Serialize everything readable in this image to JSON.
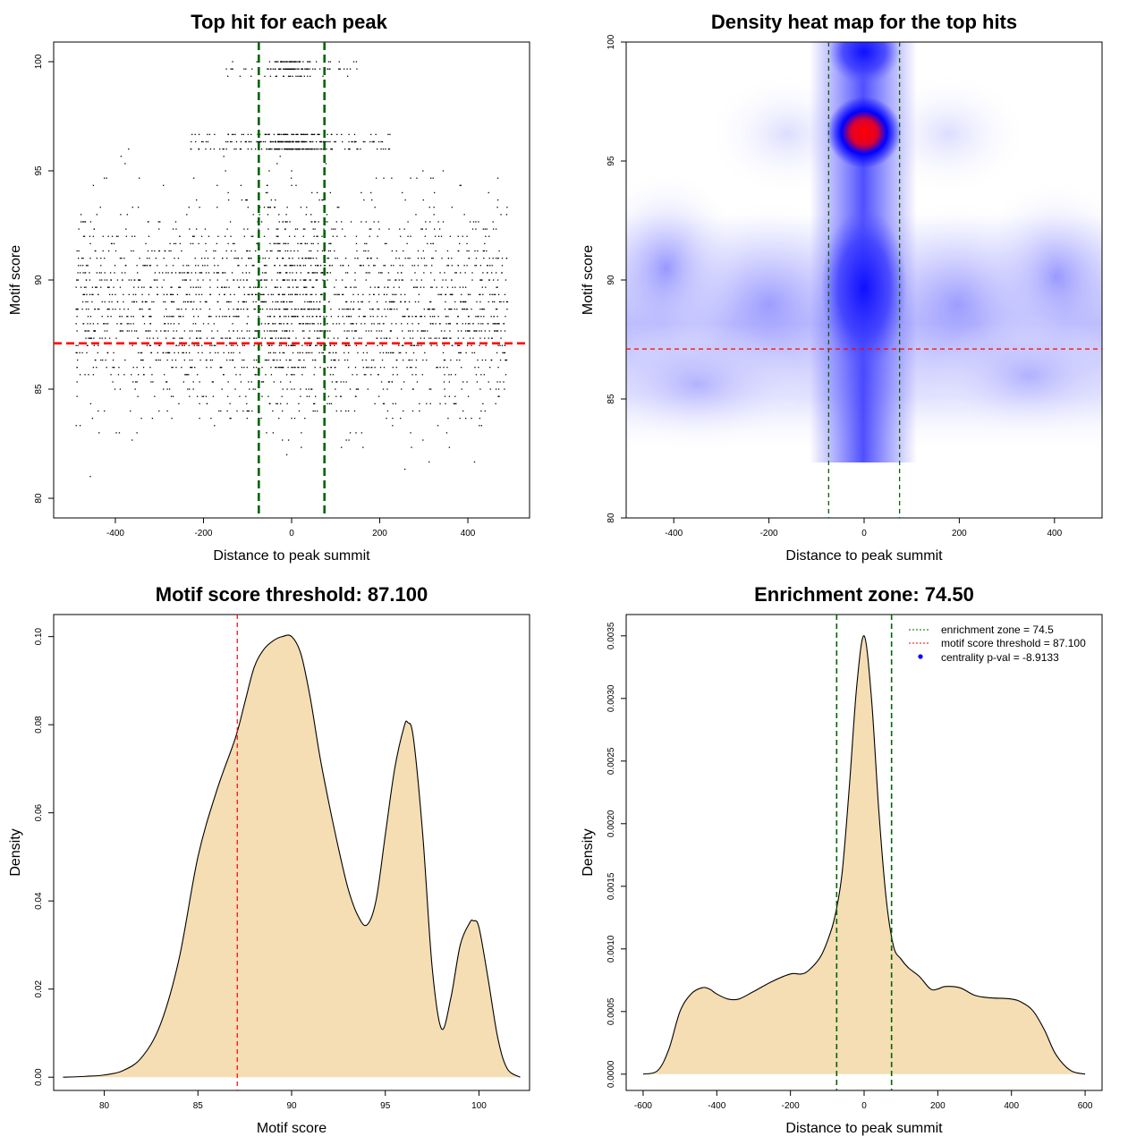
{
  "chart_data": [
    {
      "type": "scatter",
      "title": "Top hit for each peak",
      "xlabel": "Distance to peak summit",
      "ylabel": "Motif score",
      "xlim": [
        -540,
        540
      ],
      "ylim": [
        79.1,
        100.9
      ],
      "xticks": [
        -400,
        -200,
        0,
        200,
        400
      ],
      "yticks": [
        80,
        85,
        90,
        95,
        100
      ],
      "vlines": [
        -74.5,
        74.5
      ],
      "hline": 87.1,
      "vline_color": "#006400",
      "hline_color": "#ff0000",
      "point_color": "#000000",
      "n_points_approx": 3000,
      "note_points": "dense point cloud: x roughly uniform in [-500,500], y mostly 83-93 with dense bands near 96-96.7 and 99.4-100 concentrated around x=0"
    },
    {
      "type": "heatmap",
      "title": "Density heat map for the top hits",
      "xlabel": "Distance to peak summit",
      "ylabel": "Motif score",
      "xlim": [
        -500,
        500
      ],
      "ylim": [
        80,
        100
      ],
      "xticks": [
        -400,
        -200,
        0,
        200,
        400
      ],
      "yticks": [
        80,
        85,
        90,
        95,
        100
      ],
      "vlines": [
        -74.5,
        74.5
      ],
      "hline": 87.1,
      "vline_color": "#006400",
      "hline_color": "#ff0000",
      "hotspots": [
        {
          "x": 0,
          "y": 96.2,
          "intensity": 1.0
        },
        {
          "x": 0,
          "y": 99.6,
          "intensity": 0.7
        },
        {
          "x": 0,
          "y": 90.0,
          "intensity": 0.6
        }
      ],
      "low_color": "#ffffff",
      "mid_color": "#0000ff",
      "high_color": "#ff0000"
    },
    {
      "type": "area",
      "title": "Motif score threshold: 87.100",
      "xlabel": "Motif score",
      "ylabel": "Density",
      "xlim": [
        77.3,
        102.7
      ],
      "ylim": [
        -0.003,
        0.105
      ],
      "xticks": [
        80,
        85,
        90,
        95,
        100
      ],
      "yticks": [
        0.0,
        0.02,
        0.04,
        0.06,
        0.08,
        0.1
      ],
      "ytick_labels": [
        "0.00",
        "0.02",
        "0.04",
        "0.06",
        "0.08",
        "0.10"
      ],
      "vlines": [
        87.1
      ],
      "vline_color": "#ff0000",
      "fill_color": "#f5deb3",
      "x": [
        77.8,
        79,
        80,
        81,
        82,
        83,
        84,
        85,
        86,
        87,
        87.5,
        88,
        88.5,
        89,
        89.5,
        90,
        90.5,
        91,
        91.5,
        92,
        92.5,
        93,
        93.5,
        94,
        94.5,
        95,
        95.5,
        96,
        96.2,
        96.5,
        97,
        97.5,
        98,
        98.5,
        99,
        99.5,
        99.7,
        100,
        100.5,
        101,
        101.5,
        102.2
      ],
      "y": [
        0.0,
        0.0002,
        0.0005,
        0.0015,
        0.0045,
        0.012,
        0.027,
        0.05,
        0.065,
        0.077,
        0.085,
        0.093,
        0.097,
        0.099,
        0.1,
        0.1,
        0.096,
        0.086,
        0.073,
        0.062,
        0.052,
        0.043,
        0.037,
        0.0345,
        0.04,
        0.055,
        0.07,
        0.0795,
        0.0805,
        0.077,
        0.055,
        0.025,
        0.011,
        0.018,
        0.03,
        0.035,
        0.0355,
        0.034,
        0.022,
        0.009,
        0.002,
        0.0
      ]
    },
    {
      "type": "area",
      "title": "Enrichment zone: 74.50",
      "xlabel": "Distance to peak summit",
      "ylabel": "Density",
      "xlim": [
        -646,
        646
      ],
      "ylim": [
        -0.00013,
        0.00367
      ],
      "xticks": [
        -600,
        -400,
        -200,
        0,
        200,
        400,
        600
      ],
      "yticks": [
        0.0,
        0.0005,
        0.001,
        0.0015,
        0.002,
        0.0025,
        0.003,
        0.0035
      ],
      "ytick_labels": [
        "0.0000",
        "0.0005",
        "0.0010",
        "0.0015",
        "0.0020",
        "0.0025",
        "0.0030",
        "0.0035"
      ],
      "vlines": [
        -74.5,
        74.5
      ],
      "vline_color": "#006400",
      "fill_color": "#f5deb3",
      "x": [
        -600,
        -560,
        -530,
        -500,
        -470,
        -440,
        -420,
        -400,
        -370,
        -340,
        -300,
        -250,
        -200,
        -170,
        -150,
        -120,
        -100,
        -80,
        -60,
        -40,
        -20,
        0,
        20,
        40,
        60,
        80,
        100,
        120,
        150,
        180,
        200,
        220,
        260,
        300,
        340,
        400,
        430,
        460,
        490,
        520,
        560,
        600
      ],
      "y": [
        0.0,
        3e-05,
        0.0002,
        0.0005,
        0.00064,
        0.00069,
        0.00068,
        0.00064,
        0.0006,
        0.0006,
        0.00066,
        0.00074,
        0.0008,
        0.0008,
        0.00083,
        0.00093,
        0.00106,
        0.00125,
        0.0016,
        0.0023,
        0.0031,
        0.0035,
        0.003,
        0.0021,
        0.0014,
        0.00102,
        0.00092,
        0.00085,
        0.00078,
        0.00068,
        0.00068,
        0.0007,
        0.00069,
        0.00063,
        0.00061,
        0.0006,
        0.00057,
        0.0005,
        0.00035,
        0.00016,
        3e-05,
        0.0
      ],
      "legend": {
        "position": "top-right",
        "items": [
          {
            "label": "enrichment zone = 74.5",
            "color": "#006400",
            "style": "dotted-line"
          },
          {
            "label": "motif score threshold = 87.100",
            "color": "#ff0000",
            "style": "dotted-line"
          },
          {
            "label": "centrality p-val = -8.9133",
            "color": "#0000ff",
            "style": "dot"
          }
        ]
      }
    }
  ]
}
